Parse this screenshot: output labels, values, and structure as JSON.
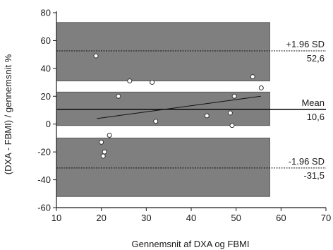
{
  "chart_data": {
    "type": "scatter",
    "title": "",
    "xlabel": "Gennemsnit af DXA og FBMI",
    "ylabel": "(DXA - FBMI) / gennemsnit %",
    "xlim": [
      10,
      70
    ],
    "ylim": [
      -60,
      80
    ],
    "xticks": [
      10,
      20,
      30,
      40,
      50,
      60,
      70
    ],
    "yticks": [
      -60,
      -40,
      -20,
      0,
      20,
      40,
      60,
      80
    ],
    "grid": false,
    "points": [
      {
        "x": 18.8,
        "y": 49
      },
      {
        "x": 23.8,
        "y": 20
      },
      {
        "x": 26.3,
        "y": 31
      },
      {
        "x": 31.3,
        "y": 30
      },
      {
        "x": 32.1,
        "y": 2
      },
      {
        "x": 20.0,
        "y": -13
      },
      {
        "x": 20.7,
        "y": -20
      },
      {
        "x": 20.4,
        "y": -23
      },
      {
        "x": 21.8,
        "y": -8
      },
      {
        "x": 43.5,
        "y": 6
      },
      {
        "x": 48.7,
        "y": 8
      },
      {
        "x": 49.1,
        "y": -1
      },
      {
        "x": 49.6,
        "y": 20
      },
      {
        "x": 53.7,
        "y": 34
      },
      {
        "x": 55.6,
        "y": 26
      }
    ],
    "regression_line": {
      "x": [
        19,
        55.5
      ],
      "y": [
        4,
        20
      ]
    },
    "reference_lines": [
      {
        "name": "+1.96 SD",
        "value": 52.6,
        "value_label": "52,6",
        "band": [
          31,
          73
        ]
      },
      {
        "name": "Mean",
        "value": 10.6,
        "value_label": "10,6",
        "band": [
          -1,
          23
        ]
      },
      {
        "name": "-1.96 SD",
        "value": -31.5,
        "value_label": "-31,5",
        "band": [
          -52,
          -10
        ]
      }
    ],
    "colors": {
      "band_fill": "#7f7f7f",
      "band_edge": "#5a5a5a",
      "axis": "#1a1a1a",
      "point_fill": "#ffffff",
      "point_edge": "#333333",
      "line": "#111111"
    }
  }
}
